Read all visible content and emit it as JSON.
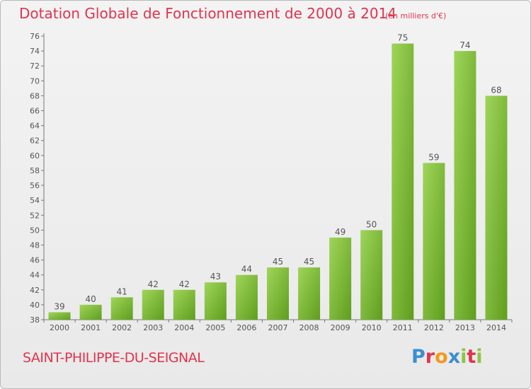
{
  "header": {
    "title": "Dotation Globale de Fonctionnement de 2000 à 2014",
    "unit": "(en milliers d'€)"
  },
  "footer": {
    "commune": "SAINT-PHILIPPE-DU-SEIGNAL",
    "logo_text": "Proxiti",
    "logo_colors": [
      "#3a8fd1",
      "#e0344d",
      "#f19a1a",
      "#3a8fd1",
      "#8dc63f",
      "#e0344d",
      "#8dc63f"
    ]
  },
  "colors": {
    "bar_light": "#9fd55a",
    "bar_dark": "#5f9e1d",
    "text": "#555555",
    "accent": "#e0344d"
  },
  "chart_data": {
    "type": "bar",
    "title": "Dotation Globale de Fonctionnement de 2000 à 2014",
    "subtitle": "(en milliers d'€)",
    "categories": [
      "2000",
      "2001",
      "2002",
      "2003",
      "2004",
      "2005",
      "2006",
      "2007",
      "2008",
      "2009",
      "2010",
      "2011",
      "2012",
      "2013",
      "2014"
    ],
    "values": [
      39,
      40,
      41,
      42,
      42,
      43,
      44,
      45,
      45,
      49,
      50,
      75,
      59,
      74,
      68
    ],
    "ylim": [
      38,
      76
    ],
    "yticks": [
      38,
      40,
      42,
      44,
      46,
      48,
      50,
      52,
      54,
      56,
      58,
      60,
      62,
      64,
      66,
      68,
      70,
      72,
      74,
      76
    ],
    "grid": false,
    "data_labels": true
  }
}
